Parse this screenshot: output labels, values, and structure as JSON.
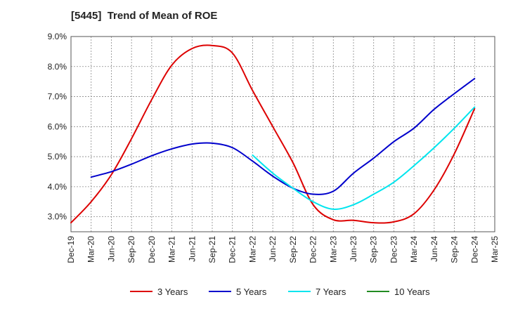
{
  "chart_data": {
    "type": "line",
    "title": "[5445]  Trend of Mean of ROE",
    "xlabel": "",
    "ylabel": "",
    "x": [
      "Dec-19",
      "Mar-20",
      "Jun-20",
      "Sep-20",
      "Dec-20",
      "Mar-21",
      "Jun-21",
      "Sep-21",
      "Dec-21",
      "Mar-22",
      "Jun-22",
      "Sep-22",
      "Dec-22",
      "Mar-23",
      "Jun-23",
      "Sep-23",
      "Dec-23",
      "Mar-24",
      "Jun-24",
      "Sep-24",
      "Dec-24",
      "Mar-25"
    ],
    "ylim": [
      2.5,
      9.0
    ],
    "yticks": [
      3.0,
      4.0,
      5.0,
      6.0,
      7.0,
      8.0,
      9.0
    ],
    "ytick_labels": [
      "3.0%",
      "4.0%",
      "5.0%",
      "6.0%",
      "7.0%",
      "8.0%",
      "9.0%"
    ],
    "grid": true,
    "legend_position": "bottom",
    "series": [
      {
        "name": "3 Years",
        "color": "#dd0000",
        "values": [
          2.8,
          3.5,
          4.4,
          5.6,
          6.9,
          8.05,
          8.6,
          8.7,
          8.45,
          7.2,
          6.0,
          4.8,
          3.4,
          2.9,
          2.88,
          2.8,
          2.83,
          3.1,
          3.9,
          5.1,
          6.6,
          null
        ]
      },
      {
        "name": "5 Years",
        "color": "#0000cc",
        "values": [
          null,
          4.32,
          4.5,
          4.75,
          5.03,
          5.26,
          5.42,
          5.45,
          5.3,
          4.85,
          4.35,
          3.95,
          3.75,
          3.85,
          4.45,
          4.95,
          5.5,
          5.95,
          6.58,
          7.1,
          7.6,
          null
        ]
      },
      {
        "name": "7 Years",
        "color": "#00e5ee",
        "values": [
          null,
          null,
          null,
          null,
          null,
          null,
          null,
          null,
          null,
          5.05,
          4.45,
          3.95,
          3.5,
          3.25,
          3.4,
          3.75,
          4.15,
          4.7,
          5.3,
          5.95,
          6.65,
          null
        ]
      },
      {
        "name": "10 Years",
        "color": "#228b22",
        "values": [
          null,
          null,
          null,
          null,
          null,
          null,
          null,
          null,
          null,
          null,
          null,
          null,
          null,
          null,
          null,
          null,
          null,
          null,
          null,
          null,
          null,
          null
        ]
      }
    ]
  }
}
